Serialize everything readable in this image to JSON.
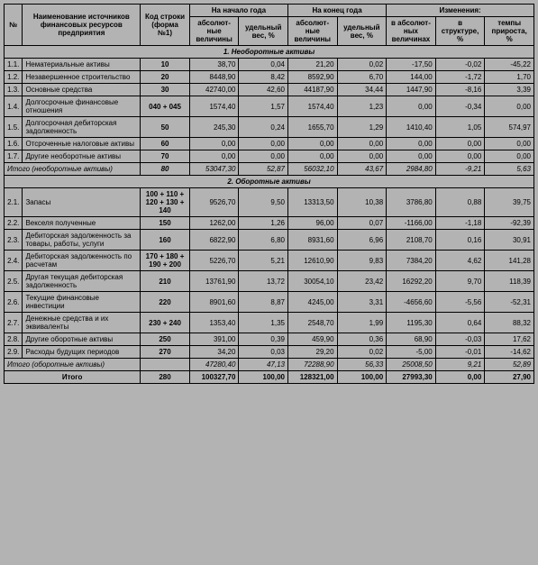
{
  "headers": {
    "no": "№",
    "name": "Наименование источников финансовых ресурсов предприятия",
    "code": "Код строки (форма №1)",
    "start_year": "На начало года",
    "end_year": "На конец года",
    "changes": "Изменения:",
    "abs_val": "абсолют-ные величины",
    "weight": "удельный вес, %",
    "abs_change": "в абсолют-ных величинах",
    "struct_change": "в структуре, %",
    "tempo": "темпы прироста, %"
  },
  "sections": {
    "s1": "1. Необоротные активы",
    "s2": "2. Оборотные активы"
  },
  "rows": [
    {
      "n": "1.1.",
      "name": "Нематериальные активы",
      "code": "10",
      "sa": "38,70",
      "sw": "0,04",
      "ea": "21,20",
      "ew": "0,02",
      "ca": "-17,50",
      "cs": "-0,02",
      "ct": "-45,22"
    },
    {
      "n": "1.2.",
      "name": "Незавершенное строительство",
      "code": "20",
      "sa": "8448,90",
      "sw": "8,42",
      "ea": "8592,90",
      "ew": "6,70",
      "ca": "144,00",
      "cs": "-1,72",
      "ct": "1,70"
    },
    {
      "n": "1.3.",
      "name": "Основные средства",
      "code": "30",
      "sa": "42740,00",
      "sw": "42,60",
      "ea": "44187,90",
      "ew": "34,44",
      "ca": "1447,90",
      "cs": "-8,16",
      "ct": "3,39"
    },
    {
      "n": "1.4.",
      "name": "Долгосрочные финансовые отношения",
      "code": "040 + 045",
      "sa": "1574,40",
      "sw": "1,57",
      "ea": "1574,40",
      "ew": "1,23",
      "ca": "0,00",
      "cs": "-0,34",
      "ct": "0,00"
    },
    {
      "n": "1.5.",
      "name": "Долгосрочная дебиторская задолженность",
      "code": "50",
      "sa": "245,30",
      "sw": "0,24",
      "ea": "1655,70",
      "ew": "1,29",
      "ca": "1410,40",
      "cs": "1,05",
      "ct": "574,97"
    },
    {
      "n": "1.6.",
      "name": "Отсроченные налоговые активы",
      "code": "60",
      "sa": "0,00",
      "sw": "0,00",
      "ea": "0,00",
      "ew": "0,00",
      "ca": "0,00",
      "cs": "0,00",
      "ct": "0,00"
    },
    {
      "n": "1.7.",
      "name": "Другие необоротные активы",
      "code": "70",
      "sa": "0,00",
      "sw": "0,00",
      "ea": "0,00",
      "ew": "0,00",
      "ca": "0,00",
      "cs": "0,00",
      "ct": "0,00"
    }
  ],
  "subtotal1": {
    "name": "Итого (необоротные активы)",
    "code": "80",
    "sa": "53047,30",
    "sw": "52,87",
    "ea": "56032,10",
    "ew": "43,67",
    "ca": "2984,80",
    "cs": "-9,21",
    "ct": "5,63"
  },
  "rows2": [
    {
      "n": "2.1.",
      "name": "Запасы",
      "code": "100 + 110 + 120 + 130 + 140",
      "sa": "9526,70",
      "sw": "9,50",
      "ea": "13313,50",
      "ew": "10,38",
      "ca": "3786,80",
      "cs": "0,88",
      "ct": "39,75"
    },
    {
      "n": "2.2.",
      "name": "Векселя полученные",
      "code": "150",
      "sa": "1262,00",
      "sw": "1,26",
      "ea": "96,00",
      "ew": "0,07",
      "ca": "-1166,00",
      "cs": "-1,18",
      "ct": "-92,39"
    },
    {
      "n": "2.3.",
      "name": "Дебиторская задолженность за товары, работы, услуги",
      "code": "160",
      "sa": "6822,90",
      "sw": "6,80",
      "ea": "8931,60",
      "ew": "6,96",
      "ca": "2108,70",
      "cs": "0,16",
      "ct": "30,91"
    },
    {
      "n": "2.4.",
      "name": "Дебиторская задолженность по расчетам",
      "code": "170 + 180 + 190 + 200",
      "sa": "5226,70",
      "sw": "5,21",
      "ea": "12610,90",
      "ew": "9,83",
      "ca": "7384,20",
      "cs": "4,62",
      "ct": "141,28"
    },
    {
      "n": "2.5.",
      "name": "Другая текущая дебиторская задолженность",
      "code": "210",
      "sa": "13761,90",
      "sw": "13,72",
      "ea": "30054,10",
      "ew": "23,42",
      "ca": "16292,20",
      "cs": "9,70",
      "ct": "118,39"
    },
    {
      "n": "2.6.",
      "name": "Текущие финансовые инвестиции",
      "code": "220",
      "sa": "8901,60",
      "sw": "8,87",
      "ea": "4245,00",
      "ew": "3,31",
      "ca": "-4656,60",
      "cs": "-5,56",
      "ct": "-52,31"
    },
    {
      "n": "2.7.",
      "name": "Денежные средства и их эквиваленты",
      "code": "230 + 240",
      "sa": "1353,40",
      "sw": "1,35",
      "ea": "2548,70",
      "ew": "1,99",
      "ca": "1195,30",
      "cs": "0,64",
      "ct": "88,32"
    },
    {
      "n": "2.8.",
      "name": "Другие оборотные активы",
      "code": "250",
      "sa": "391,00",
      "sw": "0,39",
      "ea": "459,90",
      "ew": "0,36",
      "ca": "68,90",
      "cs": "-0,03",
      "ct": "17,62"
    },
    {
      "n": "2.9.",
      "name": "Расходы будущих периодов",
      "code": "270",
      "sa": "34,20",
      "sw": "0,03",
      "ea": "29,20",
      "ew": "0,02",
      "ca": "-5,00",
      "cs": "-0,01",
      "ct": "-14,62"
    }
  ],
  "subtotal2": {
    "name": "Итого (оборотные активы)",
    "code": "",
    "sa": "47280,40",
    "sw": "47,13",
    "ea": "72288,90",
    "ew": "56,33",
    "ca": "25008,50",
    "cs": "9,21",
    "ct": "52,89"
  },
  "total": {
    "name": "Итого",
    "code": "280",
    "sa": "100327,70",
    "sw": "100,00",
    "ea": "128321,00",
    "ew": "100,00",
    "ca": "27993,30",
    "cs": "0,00",
    "ct": "27,90"
  }
}
